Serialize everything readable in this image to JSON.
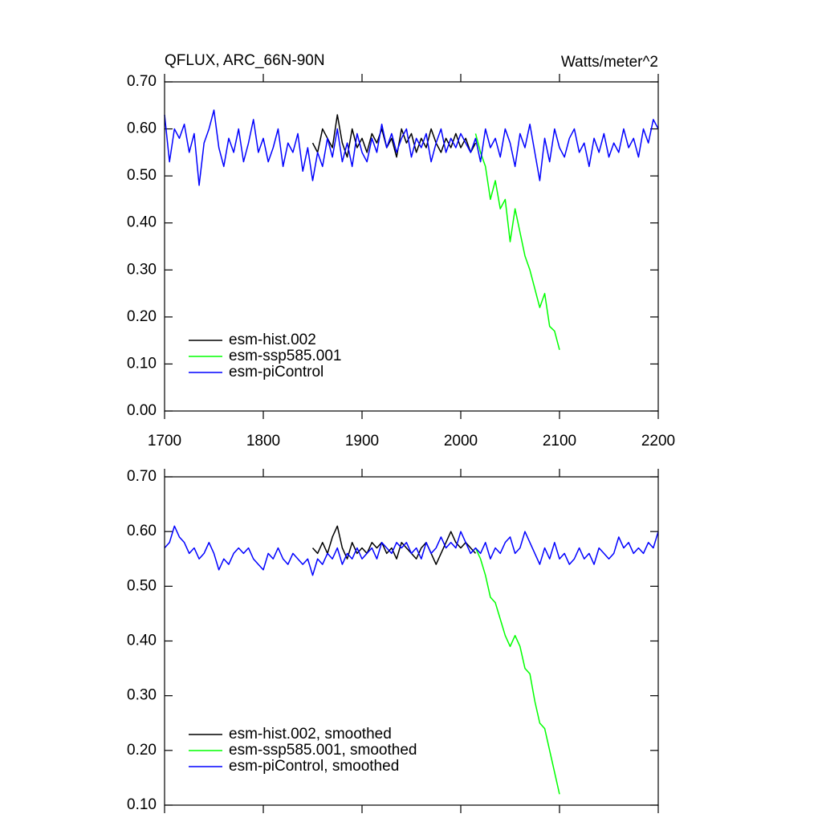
{
  "chart_data": [
    {
      "type": "line",
      "title": "QFLUX, ARC_66N-90N",
      "subtitle": "Watts/meter^2",
      "x": [
        1700,
        1705,
        1710,
        1715,
        1720,
        1725,
        1730,
        1735,
        1740,
        1745,
        1750,
        1755,
        1760,
        1765,
        1770,
        1775,
        1780,
        1785,
        1790,
        1795,
        1800,
        1805,
        1810,
        1815,
        1820,
        1825,
        1830,
        1835,
        1840,
        1845,
        1850,
        1855,
        1860,
        1865,
        1870,
        1875,
        1880,
        1885,
        1890,
        1895,
        1900,
        1905,
        1910,
        1915,
        1920,
        1925,
        1930,
        1935,
        1940,
        1945,
        1950,
        1955,
        1960,
        1965,
        1970,
        1975,
        1980,
        1985,
        1990,
        1995,
        2000,
        2005,
        2010,
        2015,
        2020,
        2025,
        2030,
        2035,
        2040,
        2045,
        2050,
        2055,
        2060,
        2065,
        2070,
        2075,
        2080,
        2085,
        2090,
        2095,
        2100,
        2105,
        2110,
        2115,
        2120,
        2125,
        2130,
        2135,
        2140,
        2145,
        2150,
        2155,
        2160,
        2165,
        2170,
        2175,
        2180,
        2185,
        2190,
        2195,
        2200
      ],
      "series": [
        {
          "name": "esm-hist.002",
          "color": "#000000",
          "values": [
            null,
            null,
            null,
            null,
            null,
            null,
            null,
            null,
            null,
            null,
            null,
            null,
            null,
            null,
            null,
            null,
            null,
            null,
            null,
            null,
            null,
            null,
            null,
            null,
            null,
            null,
            null,
            null,
            null,
            null,
            0.57,
            0.55,
            0.6,
            0.58,
            0.56,
            0.63,
            0.57,
            0.54,
            0.6,
            0.56,
            0.58,
            0.55,
            0.59,
            0.57,
            0.6,
            0.56,
            0.58,
            0.54,
            0.6,
            0.57,
            0.59,
            0.55,
            0.58,
            0.56,
            0.6,
            0.57,
            0.55,
            0.58,
            0.56,
            0.59,
            0.56,
            0.58,
            0.55,
            0.57,
            null,
            null,
            null,
            null,
            null,
            null,
            null,
            null,
            null,
            null,
            null,
            null,
            null,
            null,
            null,
            null,
            null,
            null,
            null,
            null,
            null,
            null,
            null,
            null,
            null,
            null,
            null,
            null,
            null,
            null,
            null,
            null,
            null,
            null,
            null,
            null,
            null
          ]
        },
        {
          "name": "esm-ssp585.001",
          "color": "#00ff00",
          "values": [
            null,
            null,
            null,
            null,
            null,
            null,
            null,
            null,
            null,
            null,
            null,
            null,
            null,
            null,
            null,
            null,
            null,
            null,
            null,
            null,
            null,
            null,
            null,
            null,
            null,
            null,
            null,
            null,
            null,
            null,
            null,
            null,
            null,
            null,
            null,
            null,
            null,
            null,
            null,
            null,
            null,
            null,
            null,
            null,
            null,
            null,
            null,
            null,
            null,
            null,
            null,
            null,
            null,
            null,
            null,
            null,
            null,
            null,
            null,
            null,
            null,
            null,
            null,
            0.59,
            0.55,
            0.52,
            0.45,
            0.49,
            0.43,
            0.45,
            0.36,
            0.43,
            0.38,
            0.33,
            0.3,
            0.26,
            0.22,
            0.25,
            0.18,
            0.17,
            0.13,
            null,
            null,
            null,
            null,
            null,
            null,
            null,
            null,
            null,
            null,
            null,
            null,
            null,
            null,
            null,
            null,
            null,
            null,
            null,
            null
          ]
        },
        {
          "name": "esm-piControl",
          "color": "#0000ff",
          "values": [
            0.63,
            0.53,
            0.6,
            0.58,
            0.61,
            0.55,
            0.59,
            0.48,
            0.57,
            0.6,
            0.64,
            0.56,
            0.52,
            0.58,
            0.55,
            0.6,
            0.53,
            0.57,
            0.62,
            0.55,
            0.58,
            0.53,
            0.56,
            0.6,
            0.52,
            0.57,
            0.55,
            0.59,
            0.51,
            0.56,
            0.49,
            0.55,
            0.52,
            0.58,
            0.54,
            0.6,
            0.53,
            0.57,
            0.52,
            0.59,
            0.55,
            0.53,
            0.58,
            0.55,
            0.61,
            0.56,
            0.59,
            0.55,
            0.58,
            0.6,
            0.54,
            0.58,
            0.56,
            0.59,
            0.53,
            0.57,
            0.6,
            0.55,
            0.58,
            0.56,
            0.59,
            0.57,
            0.55,
            0.58,
            0.53,
            0.6,
            0.56,
            0.58,
            0.54,
            0.6,
            0.57,
            0.52,
            0.59,
            0.56,
            0.61,
            0.55,
            0.49,
            0.58,
            0.53,
            0.6,
            0.56,
            0.54,
            0.58,
            0.6,
            0.55,
            0.57,
            0.52,
            0.58,
            0.55,
            0.59,
            0.54,
            0.57,
            0.55,
            0.6,
            0.56,
            0.58,
            0.54,
            0.6,
            0.57,
            0.62,
            0.6
          ]
        }
      ],
      "xlim": [
        1700,
        2200
      ],
      "xticks": [
        1700,
        1800,
        1900,
        2000,
        2100,
        2200
      ],
      "show_xtick_labels": true,
      "ylim": [
        0,
        0.7
      ],
      "yticks": [
        {
          "value": 0,
          "label": "0.00"
        },
        {
          "value": 0.1,
          "label": "0.10"
        },
        {
          "value": 0.2,
          "label": "0.20"
        },
        {
          "value": 0.3,
          "label": "0.30"
        },
        {
          "value": 0.4,
          "label": "0.40"
        },
        {
          "value": 0.5,
          "label": "0.50"
        },
        {
          "value": 0.6,
          "label": "0.60"
        },
        {
          "value": 0.7,
          "label": "0.70"
        }
      ],
      "legend": "lower left"
    },
    {
      "type": "line",
      "x": [
        1700,
        1705,
        1710,
        1715,
        1720,
        1725,
        1730,
        1735,
        1740,
        1745,
        1750,
        1755,
        1760,
        1765,
        1770,
        1775,
        1780,
        1785,
        1790,
        1795,
        1800,
        1805,
        1810,
        1815,
        1820,
        1825,
        1830,
        1835,
        1840,
        1845,
        1850,
        1855,
        1860,
        1865,
        1870,
        1875,
        1880,
        1885,
        1890,
        1895,
        1900,
        1905,
        1910,
        1915,
        1920,
        1925,
        1930,
        1935,
        1940,
        1945,
        1950,
        1955,
        1960,
        1965,
        1970,
        1975,
        1980,
        1985,
        1990,
        1995,
        2000,
        2005,
        2010,
        2015,
        2020,
        2025,
        2030,
        2035,
        2040,
        2045,
        2050,
        2055,
        2060,
        2065,
        2070,
        2075,
        2080,
        2085,
        2090,
        2095,
        2100,
        2105,
        2110,
        2115,
        2120,
        2125,
        2130,
        2135,
        2140,
        2145,
        2150,
        2155,
        2160,
        2165,
        2170,
        2175,
        2180,
        2185,
        2190,
        2195,
        2200
      ],
      "series": [
        {
          "name": "esm-hist.002, smoothed",
          "color": "#000000",
          "values": [
            null,
            null,
            null,
            null,
            null,
            null,
            null,
            null,
            null,
            null,
            null,
            null,
            null,
            null,
            null,
            null,
            null,
            null,
            null,
            null,
            null,
            null,
            null,
            null,
            null,
            null,
            null,
            null,
            null,
            null,
            0.57,
            0.56,
            0.58,
            0.56,
            0.59,
            0.61,
            0.57,
            0.55,
            0.58,
            0.56,
            0.57,
            0.56,
            0.58,
            0.57,
            0.58,
            0.56,
            0.57,
            0.55,
            0.58,
            0.57,
            0.56,
            0.55,
            0.57,
            0.58,
            0.56,
            0.54,
            0.56,
            0.58,
            0.6,
            0.58,
            0.57,
            0.58,
            0.57,
            0.56,
            null,
            null,
            null,
            null,
            null,
            null,
            null,
            null,
            null,
            null,
            null,
            null,
            null,
            null,
            null,
            null,
            null,
            null,
            null,
            null,
            null,
            null,
            null,
            null,
            null,
            null,
            null,
            null,
            null,
            null,
            null,
            null,
            null,
            null,
            null,
            null,
            null
          ]
        },
        {
          "name": "esm-ssp585.001, smoothed",
          "color": "#00ff00",
          "values": [
            null,
            null,
            null,
            null,
            null,
            null,
            null,
            null,
            null,
            null,
            null,
            null,
            null,
            null,
            null,
            null,
            null,
            null,
            null,
            null,
            null,
            null,
            null,
            null,
            null,
            null,
            null,
            null,
            null,
            null,
            null,
            null,
            null,
            null,
            null,
            null,
            null,
            null,
            null,
            null,
            null,
            null,
            null,
            null,
            null,
            null,
            null,
            null,
            null,
            null,
            null,
            null,
            null,
            null,
            null,
            null,
            null,
            null,
            null,
            null,
            null,
            null,
            null,
            0.57,
            0.55,
            0.52,
            0.48,
            0.47,
            0.44,
            0.41,
            0.39,
            0.41,
            0.39,
            0.35,
            0.34,
            0.29,
            0.25,
            0.24,
            0.2,
            0.16,
            0.12,
            null,
            null,
            null,
            null,
            null,
            null,
            null,
            null,
            null,
            null,
            null,
            null,
            null,
            null,
            null,
            null,
            null,
            null,
            null,
            null
          ]
        },
        {
          "name": "esm-piControl, smoothed",
          "color": "#0000ff",
          "values": [
            0.57,
            0.58,
            0.61,
            0.59,
            0.58,
            0.56,
            0.57,
            0.55,
            0.56,
            0.58,
            0.56,
            0.53,
            0.55,
            0.54,
            0.56,
            0.57,
            0.56,
            0.57,
            0.55,
            0.54,
            0.53,
            0.56,
            0.55,
            0.57,
            0.55,
            0.54,
            0.56,
            0.55,
            0.54,
            0.55,
            0.52,
            0.55,
            0.54,
            0.56,
            0.55,
            0.57,
            0.54,
            0.56,
            0.55,
            0.57,
            0.55,
            0.56,
            0.57,
            0.55,
            0.58,
            0.57,
            0.56,
            0.58,
            0.57,
            0.58,
            0.56,
            0.57,
            0.55,
            0.58,
            0.56,
            0.57,
            0.59,
            0.57,
            0.58,
            0.57,
            0.6,
            0.58,
            0.56,
            0.57,
            0.56,
            0.58,
            0.55,
            0.57,
            0.56,
            0.58,
            0.59,
            0.56,
            0.57,
            0.6,
            0.58,
            0.56,
            0.54,
            0.57,
            0.55,
            0.58,
            0.55,
            0.56,
            0.54,
            0.55,
            0.57,
            0.55,
            0.56,
            0.54,
            0.57,
            0.56,
            0.55,
            0.56,
            0.59,
            0.57,
            0.58,
            0.56,
            0.57,
            0.56,
            0.58,
            0.57,
            0.6
          ]
        }
      ],
      "xlim": [
        1700,
        2200
      ],
      "xticks": [
        1700,
        1800,
        1900,
        2000,
        2100,
        2200
      ],
      "show_xtick_labels": false,
      "ylim": [
        0.1,
        0.7
      ],
      "yticks": [
        {
          "value": 0.1,
          "label": "0.10"
        },
        {
          "value": 0.2,
          "label": "0.20"
        },
        {
          "value": 0.3,
          "label": "0.30"
        },
        {
          "value": 0.4,
          "label": "0.40"
        },
        {
          "value": 0.5,
          "label": "0.50"
        },
        {
          "value": 0.6,
          "label": "0.60"
        },
        {
          "value": 0.7,
          "label": "0.70"
        }
      ],
      "legend": "lower left"
    }
  ]
}
